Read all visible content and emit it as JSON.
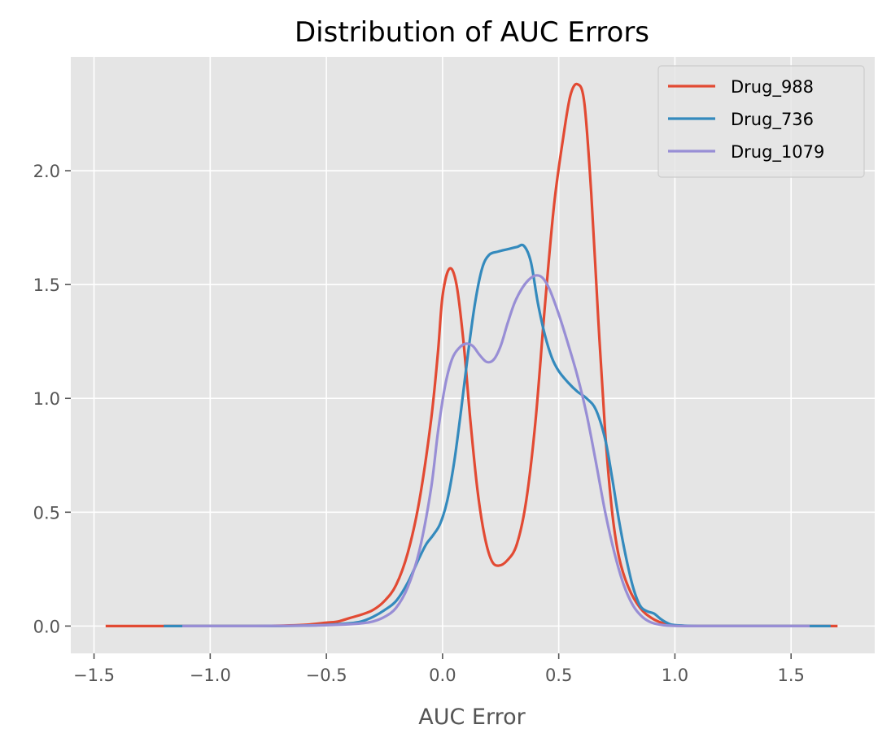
{
  "chart_data": {
    "type": "line",
    "title": "Distribution of AUC Errors",
    "xlabel": "AUC Error",
    "ylabel": "",
    "xlim": [
      -1.6,
      1.86
    ],
    "ylim": [
      -0.12,
      2.5
    ],
    "xticks": [
      -1.5,
      -1.0,
      -0.5,
      0.0,
      0.5,
      1.0,
      1.5
    ],
    "xtick_labels": [
      "−1.5",
      "−1.0",
      "−0.5",
      "0.0",
      "0.5",
      "1.0",
      "1.5"
    ],
    "yticks": [
      0.0,
      0.5,
      1.0,
      1.5,
      2.0
    ],
    "ytick_labels": [
      "0.0",
      "0.5",
      "1.0",
      "1.5",
      "2.0"
    ],
    "grid": true,
    "background": "#e5e5e5",
    "legend": {
      "position": "top-right",
      "entries": [
        "Drug_988",
        "Drug_736",
        "Drug_1079"
      ]
    },
    "series": [
      {
        "name": "Drug_988",
        "color": "#e24a33",
        "points": [
          [
            -1.45,
            0.0
          ],
          [
            -1.0,
            0.0
          ],
          [
            -0.8,
            0.0
          ],
          [
            -0.6,
            0.005
          ],
          [
            -0.5,
            0.015
          ],
          [
            -0.45,
            0.02
          ],
          [
            -0.4,
            0.035
          ],
          [
            -0.35,
            0.05
          ],
          [
            -0.3,
            0.07
          ],
          [
            -0.25,
            0.11
          ],
          [
            -0.2,
            0.18
          ],
          [
            -0.15,
            0.32
          ],
          [
            -0.1,
            0.55
          ],
          [
            -0.05,
            0.9
          ],
          [
            -0.02,
            1.2
          ],
          [
            0.0,
            1.45
          ],
          [
            0.03,
            1.57
          ],
          [
            0.06,
            1.5
          ],
          [
            0.09,
            1.25
          ],
          [
            0.12,
            0.9
          ],
          [
            0.15,
            0.6
          ],
          [
            0.18,
            0.4
          ],
          [
            0.21,
            0.29
          ],
          [
            0.24,
            0.265
          ],
          [
            0.28,
            0.29
          ],
          [
            0.32,
            0.36
          ],
          [
            0.36,
            0.55
          ],
          [
            0.4,
            0.9
          ],
          [
            0.44,
            1.4
          ],
          [
            0.48,
            1.85
          ],
          [
            0.52,
            2.15
          ],
          [
            0.55,
            2.33
          ],
          [
            0.58,
            2.38
          ],
          [
            0.61,
            2.3
          ],
          [
            0.64,
            1.9
          ],
          [
            0.67,
            1.35
          ],
          [
            0.7,
            0.85
          ],
          [
            0.73,
            0.5
          ],
          [
            0.76,
            0.3
          ],
          [
            0.8,
            0.17
          ],
          [
            0.85,
            0.08
          ],
          [
            0.9,
            0.035
          ],
          [
            0.95,
            0.012
          ],
          [
            1.0,
            0.003
          ],
          [
            1.1,
            0.0
          ],
          [
            1.3,
            0.0
          ],
          [
            1.5,
            0.0
          ],
          [
            1.7,
            0.0
          ]
        ]
      },
      {
        "name": "Drug_736",
        "color": "#348abd",
        "points": [
          [
            -1.2,
            0.0
          ],
          [
            -0.8,
            0.0
          ],
          [
            -0.6,
            0.002
          ],
          [
            -0.5,
            0.005
          ],
          [
            -0.4,
            0.012
          ],
          [
            -0.35,
            0.02
          ],
          [
            -0.3,
            0.04
          ],
          [
            -0.25,
            0.07
          ],
          [
            -0.2,
            0.11
          ],
          [
            -0.15,
            0.19
          ],
          [
            -0.1,
            0.3
          ],
          [
            -0.07,
            0.36
          ],
          [
            -0.04,
            0.4
          ],
          [
            -0.01,
            0.45
          ],
          [
            0.02,
            0.55
          ],
          [
            0.05,
            0.72
          ],
          [
            0.08,
            0.95
          ],
          [
            0.11,
            1.2
          ],
          [
            0.14,
            1.42
          ],
          [
            0.17,
            1.57
          ],
          [
            0.2,
            1.63
          ],
          [
            0.24,
            1.645
          ],
          [
            0.28,
            1.655
          ],
          [
            0.32,
            1.665
          ],
          [
            0.35,
            1.67
          ],
          [
            0.38,
            1.6
          ],
          [
            0.41,
            1.42
          ],
          [
            0.44,
            1.28
          ],
          [
            0.47,
            1.18
          ],
          [
            0.5,
            1.12
          ],
          [
            0.54,
            1.07
          ],
          [
            0.58,
            1.03
          ],
          [
            0.62,
            1.0
          ],
          [
            0.66,
            0.95
          ],
          [
            0.7,
            0.82
          ],
          [
            0.73,
            0.65
          ],
          [
            0.76,
            0.46
          ],
          [
            0.79,
            0.3
          ],
          [
            0.82,
            0.17
          ],
          [
            0.85,
            0.09
          ],
          [
            0.88,
            0.065
          ],
          [
            0.91,
            0.055
          ],
          [
            0.94,
            0.03
          ],
          [
            0.97,
            0.012
          ],
          [
            1.0,
            0.004
          ],
          [
            1.1,
            0.0
          ],
          [
            1.3,
            0.0
          ],
          [
            1.5,
            0.0
          ],
          [
            1.67,
            0.0
          ]
        ]
      },
      {
        "name": "Drug_1079",
        "color": "#988ed5",
        "points": [
          [
            -1.12,
            0.0
          ],
          [
            -0.8,
            0.0
          ],
          [
            -0.6,
            0.002
          ],
          [
            -0.5,
            0.004
          ],
          [
            -0.4,
            0.008
          ],
          [
            -0.35,
            0.012
          ],
          [
            -0.3,
            0.02
          ],
          [
            -0.25,
            0.04
          ],
          [
            -0.2,
            0.08
          ],
          [
            -0.15,
            0.17
          ],
          [
            -0.1,
            0.33
          ],
          [
            -0.05,
            0.6
          ],
          [
            -0.02,
            0.85
          ],
          [
            0.01,
            1.05
          ],
          [
            0.04,
            1.17
          ],
          [
            0.07,
            1.22
          ],
          [
            0.1,
            1.24
          ],
          [
            0.13,
            1.23
          ],
          [
            0.16,
            1.19
          ],
          [
            0.19,
            1.16
          ],
          [
            0.22,
            1.17
          ],
          [
            0.25,
            1.23
          ],
          [
            0.28,
            1.33
          ],
          [
            0.31,
            1.42
          ],
          [
            0.34,
            1.48
          ],
          [
            0.37,
            1.52
          ],
          [
            0.4,
            1.54
          ],
          [
            0.43,
            1.53
          ],
          [
            0.46,
            1.48
          ],
          [
            0.5,
            1.37
          ],
          [
            0.54,
            1.24
          ],
          [
            0.58,
            1.1
          ],
          [
            0.62,
            0.93
          ],
          [
            0.66,
            0.72
          ],
          [
            0.7,
            0.5
          ],
          [
            0.74,
            0.32
          ],
          [
            0.78,
            0.18
          ],
          [
            0.82,
            0.09
          ],
          [
            0.86,
            0.04
          ],
          [
            0.9,
            0.015
          ],
          [
            0.95,
            0.004
          ],
          [
            1.0,
            0.001
          ],
          [
            1.1,
            0.0
          ],
          [
            1.3,
            0.0
          ],
          [
            1.58,
            0.0
          ]
        ]
      }
    ]
  }
}
